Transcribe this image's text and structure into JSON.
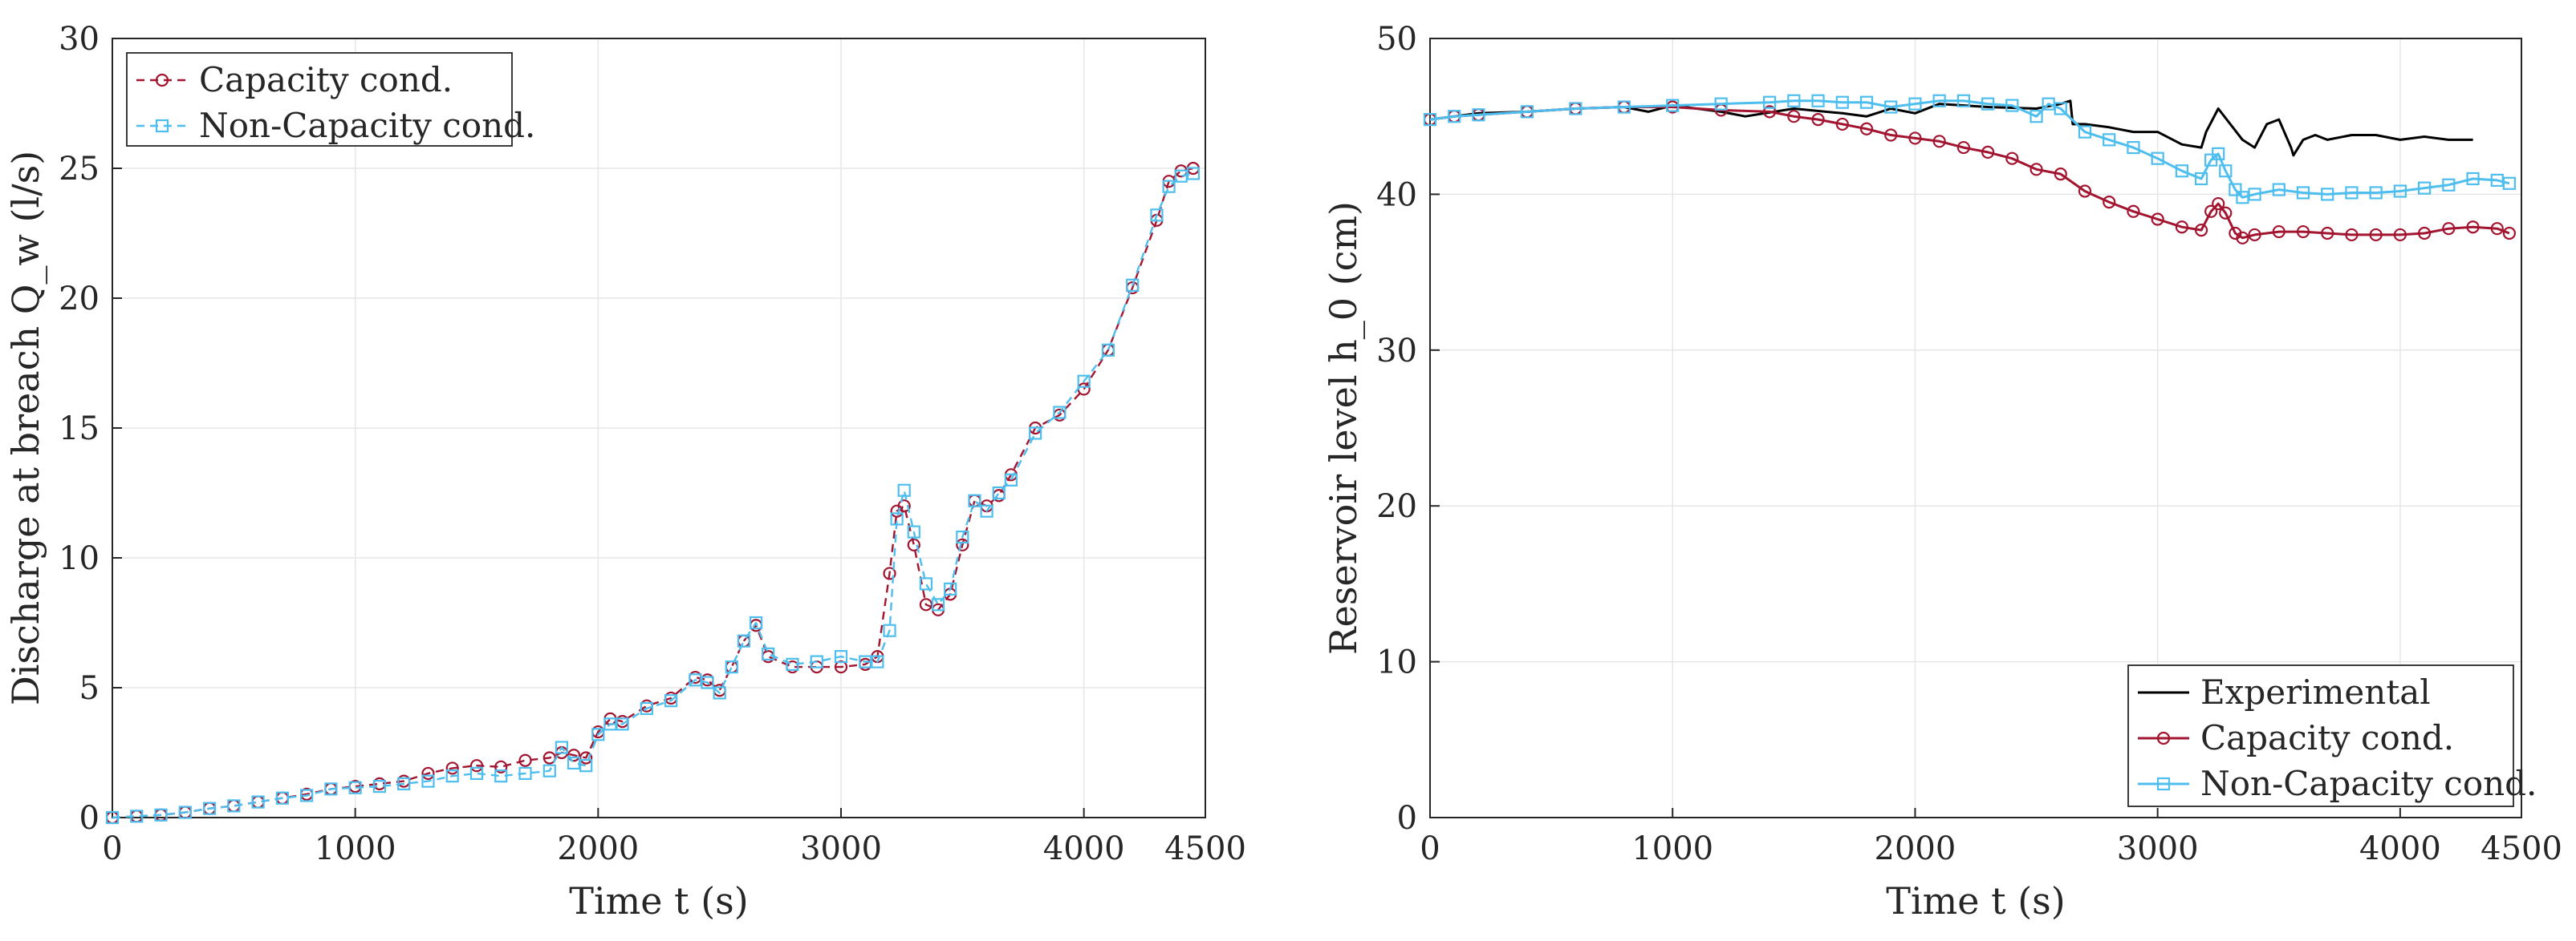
{
  "chart_data": [
    {
      "type": "line",
      "xlabel": "Time t (s)",
      "ylabel": "Discharge at breach Q_w (l/s)",
      "xlim": [
        0,
        4500
      ],
      "ylim": [
        0,
        30
      ],
      "xticks": [
        "0",
        "1000",
        "2000",
        "3000",
        "4000",
        "4500"
      ],
      "yticks": [
        "0",
        "5",
        "10",
        "15",
        "20",
        "25",
        "30"
      ],
      "grid": true,
      "legend": "top-left",
      "series": [
        {
          "name": "Capacity cond.",
          "color": "#A2142F",
          "style": "dashed-circle",
          "x": [
            0,
            100,
            200,
            300,
            400,
            500,
            600,
            700,
            800,
            900,
            1000,
            1100,
            1200,
            1300,
            1400,
            1500,
            1600,
            1700,
            1800,
            1850,
            1900,
            1950,
            2000,
            2050,
            2100,
            2200,
            2300,
            2400,
            2450,
            2500,
            2550,
            2600,
            2650,
            2700,
            2800,
            2900,
            3000,
            3100,
            3150,
            3200,
            3230,
            3260,
            3300,
            3350,
            3400,
            3450,
            3500,
            3550,
            3600,
            3650,
            3700,
            3800,
            3900,
            4000,
            4100,
            4200,
            4300,
            4350,
            4400,
            4450
          ],
          "y": [
            0,
            0.05,
            0.1,
            0.2,
            0.35,
            0.45,
            0.6,
            0.75,
            0.9,
            1.1,
            1.2,
            1.3,
            1.4,
            1.7,
            1.9,
            2.0,
            1.95,
            2.2,
            2.3,
            2.5,
            2.4,
            2.3,
            3.3,
            3.8,
            3.7,
            4.3,
            4.6,
            5.4,
            5.3,
            4.9,
            5.8,
            6.8,
            7.4,
            6.2,
            5.8,
            5.8,
            5.8,
            5.9,
            6.2,
            9.4,
            11.8,
            12.0,
            10.5,
            8.2,
            8.0,
            8.6,
            10.5,
            12.2,
            12.0,
            12.4,
            13.2,
            15.0,
            15.5,
            16.5,
            18.0,
            20.4,
            23.0,
            24.5,
            24.9,
            25.0
          ]
        },
        {
          "name": "Non-Capacity cond.",
          "color": "#4DBEEE",
          "style": "dashed-square",
          "x": [
            0,
            100,
            200,
            300,
            400,
            500,
            600,
            700,
            800,
            900,
            1000,
            1100,
            1200,
            1300,
            1400,
            1500,
            1600,
            1700,
            1800,
            1850,
            1900,
            1950,
            2000,
            2050,
            2100,
            2200,
            2300,
            2400,
            2450,
            2500,
            2550,
            2600,
            2650,
            2700,
            2800,
            2900,
            3000,
            3100,
            3150,
            3200,
            3230,
            3260,
            3300,
            3350,
            3400,
            3450,
            3500,
            3550,
            3600,
            3650,
            3700,
            3800,
            3900,
            4000,
            4100,
            4200,
            4300,
            4350,
            4400,
            4450
          ],
          "y": [
            0,
            0.05,
            0.1,
            0.2,
            0.35,
            0.45,
            0.6,
            0.75,
            0.85,
            1.1,
            1.15,
            1.2,
            1.3,
            1.4,
            1.6,
            1.7,
            1.6,
            1.7,
            1.8,
            2.7,
            2.1,
            2.0,
            3.2,
            3.6,
            3.6,
            4.2,
            4.5,
            5.3,
            5.2,
            4.8,
            5.8,
            6.8,
            7.5,
            6.3,
            5.9,
            6.0,
            6.2,
            6.0,
            6.0,
            7.2,
            11.5,
            12.6,
            11.0,
            9.0,
            8.2,
            8.8,
            10.8,
            12.2,
            11.8,
            12.5,
            13.0,
            14.8,
            15.6,
            16.8,
            18.0,
            20.5,
            23.2,
            24.3,
            24.7,
            24.8
          ]
        }
      ]
    },
    {
      "type": "line",
      "xlabel": "Time t (s)",
      "ylabel": "Reservoir level h_0 (cm)",
      "xlim": [
        0,
        4500
      ],
      "ylim": [
        0,
        50
      ],
      "xticks": [
        "0",
        "1000",
        "2000",
        "3000",
        "4000",
        "4500"
      ],
      "yticks": [
        "0",
        "10",
        "20",
        "30",
        "40",
        "50"
      ],
      "grid": true,
      "legend": "bottom-right",
      "series": [
        {
          "name": "Experimental",
          "color": "#000000",
          "style": "solid",
          "x": [
            0,
            100,
            200,
            400,
            600,
            800,
            900,
            1000,
            1200,
            1300,
            1500,
            1700,
            1800,
            1900,
            2000,
            2100,
            2300,
            2500,
            2600,
            2640,
            2650,
            2700,
            2800,
            2900,
            3000,
            3100,
            3180,
            3200,
            3250,
            3300,
            3350,
            3400,
            3450,
            3500,
            3550,
            3560,
            3600,
            3650,
            3700,
            3800,
            3900,
            4000,
            4100,
            4200,
            4300
          ],
          "y": [
            44.8,
            45.0,
            45.2,
            45.3,
            45.5,
            45.6,
            45.3,
            45.7,
            45.3,
            45.0,
            45.5,
            45.2,
            45.0,
            45.5,
            45.2,
            45.8,
            45.6,
            45.5,
            45.8,
            46.0,
            44.5,
            44.5,
            44.3,
            44.0,
            44.0,
            43.2,
            43.0,
            44.0,
            45.5,
            44.5,
            43.5,
            43.0,
            44.5,
            44.8,
            43.0,
            42.5,
            43.5,
            43.8,
            43.5,
            43.8,
            43.8,
            43.5,
            43.7,
            43.5,
            43.5
          ]
        },
        {
          "name": "Capacity cond.",
          "color": "#A2142F",
          "style": "solid-circle",
          "x": [
            0,
            100,
            200,
            400,
            600,
            800,
            1000,
            1200,
            1400,
            1500,
            1600,
            1700,
            1800,
            1900,
            2000,
            2100,
            2200,
            2300,
            2400,
            2500,
            2600,
            2700,
            2800,
            2900,
            3000,
            3100,
            3180,
            3220,
            3250,
            3280,
            3320,
            3350,
            3400,
            3500,
            3600,
            3700,
            3800,
            3900,
            4000,
            4100,
            4200,
            4300,
            4400,
            4450
          ],
          "y": [
            44.8,
            45.0,
            45.1,
            45.3,
            45.5,
            45.6,
            45.6,
            45.4,
            45.3,
            45.0,
            44.8,
            44.5,
            44.2,
            43.8,
            43.6,
            43.4,
            43.0,
            42.7,
            42.3,
            41.6,
            41.3,
            40.2,
            39.5,
            38.9,
            38.4,
            37.9,
            37.7,
            38.9,
            39.4,
            38.8,
            37.5,
            37.2,
            37.4,
            37.6,
            37.6,
            37.5,
            37.4,
            37.4,
            37.4,
            37.5,
            37.8,
            37.9,
            37.8,
            37.5
          ]
        },
        {
          "name": "Non-Capacity cond.",
          "color": "#4DBEEE",
          "style": "solid-square",
          "x": [
            0,
            100,
            200,
            400,
            600,
            800,
            1000,
            1200,
            1400,
            1500,
            1600,
            1700,
            1800,
            1900,
            2000,
            2100,
            2200,
            2300,
            2400,
            2500,
            2550,
            2600,
            2700,
            2800,
            2900,
            3000,
            3100,
            3180,
            3220,
            3250,
            3280,
            3320,
            3350,
            3400,
            3500,
            3600,
            3700,
            3800,
            3900,
            4000,
            4100,
            4200,
            4300,
            4400,
            4450
          ],
          "y": [
            44.8,
            45.0,
            45.1,
            45.3,
            45.5,
            45.6,
            45.7,
            45.8,
            45.9,
            46.0,
            46.0,
            45.9,
            45.9,
            45.6,
            45.8,
            46.0,
            46.0,
            45.8,
            45.7,
            45.0,
            45.8,
            45.5,
            44.0,
            43.5,
            43.0,
            42.3,
            41.5,
            41.0,
            42.2,
            42.6,
            41.5,
            40.3,
            39.8,
            40.0,
            40.3,
            40.1,
            40.0,
            40.1,
            40.1,
            40.2,
            40.4,
            40.6,
            41.0,
            40.9,
            40.7
          ]
        }
      ]
    }
  ]
}
